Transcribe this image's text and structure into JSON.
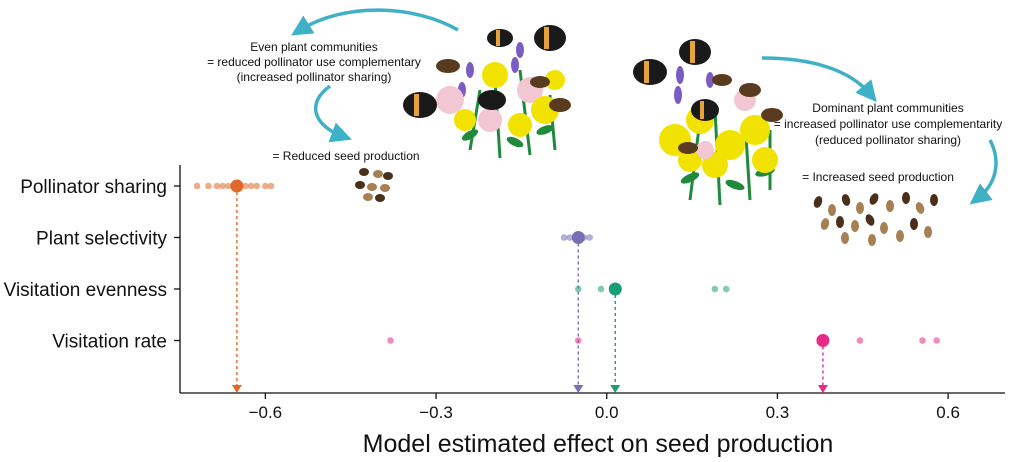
{
  "chart_data": {
    "type": "scatter",
    "title": "",
    "xlabel": "Model estimated effect on seed production",
    "ylabel": "",
    "xlim": [
      -0.75,
      0.7
    ],
    "xticks": [
      -0.6,
      -0.3,
      0.0,
      0.3,
      0.6
    ],
    "xtick_labels": [
      "−0.6",
      "−0.3",
      "0.0",
      "0.3",
      "0.6"
    ],
    "categories": [
      "Pollinator sharing",
      "Plant selectivity",
      "Visitation evenness",
      "Visitation rate"
    ],
    "grid": false,
    "series": [
      {
        "name": "Pollinator sharing",
        "color": "#e0692a",
        "estimate": -0.65,
        "points": [
          -0.72,
          -0.7,
          -0.685,
          -0.675,
          -0.665,
          -0.655,
          -0.645,
          -0.635,
          -0.625,
          -0.615,
          -0.6,
          -0.59
        ]
      },
      {
        "name": "Plant selectivity",
        "color": "#7570b3",
        "estimate": -0.05,
        "points": [
          -0.075,
          -0.065,
          -0.05,
          -0.04,
          -0.03
        ]
      },
      {
        "name": "Visitation evenness",
        "color": "#1b9e77",
        "estimate": 0.015,
        "points": [
          -0.05,
          -0.01,
          0.19,
          0.21
        ]
      },
      {
        "name": "Visitation rate",
        "color": "#e7298a",
        "estimate": 0.38,
        "points": [
          -0.38,
          -0.05,
          0.445,
          0.555,
          0.58
        ]
      }
    ],
    "annotations": {
      "left_lines": [
        "Even plant communities",
        "= reduced pollinator use complementary",
        "(increased pollinator sharing)"
      ],
      "left_result": "= Reduced seed production",
      "right_lines": [
        "Dominant plant communities",
        "= increased pollinator use complementarity",
        "(reduced pollinator sharing)"
      ],
      "right_result": "= Increased seed production"
    }
  },
  "palette": {
    "arrow": "#3fb1c7",
    "seed_dark": "#4a2f1a",
    "seed_light": "#a68054",
    "flower_yellow": "#f2e200",
    "flower_pink": "#f3c6d3",
    "flower_purple": "#7b5cc4",
    "leaf": "#1f8a3c",
    "bee_black": "#1a1a1a",
    "bee_orange": "#e8a23a"
  }
}
